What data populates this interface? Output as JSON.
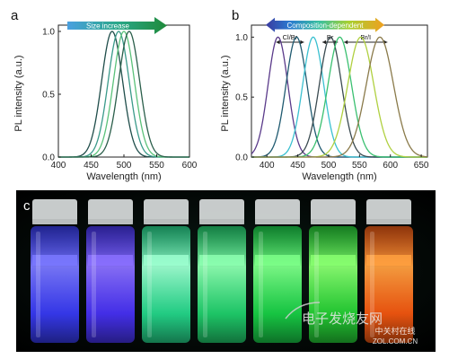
{
  "panels": {
    "a": "a",
    "b": "b",
    "c": "c"
  },
  "chart_data": [
    {
      "type": "line",
      "panel": "a",
      "xlabel": "Wavelength (nm)",
      "ylabel": "PL intensity (a.u.)",
      "xlim": [
        400,
        600
      ],
      "ylim": [
        0,
        1.05
      ],
      "xticks": [
        400,
        450,
        500,
        550,
        600
      ],
      "yticks": [
        0.0,
        0.5,
        1.0
      ],
      "annotation": "Size increase",
      "curves": [
        {
          "peak": 482,
          "width": 16,
          "color": "#1f4d4a"
        },
        {
          "peak": 492,
          "width": 16,
          "color": "#3a9a8a"
        },
        {
          "peak": 500,
          "width": 16,
          "color": "#5bc27a"
        },
        {
          "peak": 508,
          "width": 16,
          "color": "#2a5e4a"
        }
      ]
    },
    {
      "type": "line",
      "panel": "b",
      "xlabel": "Wavelength (nm)",
      "ylabel": "PL intensity (a.u.)",
      "xlim": [
        375,
        660
      ],
      "ylim": [
        0,
        1.1
      ],
      "xticks": [
        400,
        450,
        500,
        550,
        600,
        650
      ],
      "yticks": [
        0.0,
        0.5,
        1.0
      ],
      "annotation": "Composition-dependent",
      "groups": [
        {
          "label": "Cl/Br",
          "from": 415,
          "to": 460
        },
        {
          "label": "Br",
          "from": 490,
          "to": 515
        },
        {
          "label": "Br/I",
          "from": 525,
          "to": 595
        }
      ],
      "curves": [
        {
          "peak": 418,
          "width": 16,
          "color": "#5a3a8a"
        },
        {
          "peak": 448,
          "width": 17,
          "color": "#1f5a70"
        },
        {
          "peak": 475,
          "width": 17,
          "color": "#3ac0d0"
        },
        {
          "peak": 503,
          "width": 18,
          "color": "#3a4a50"
        },
        {
          "peak": 518,
          "width": 19,
          "color": "#3ac070"
        },
        {
          "peak": 552,
          "width": 21,
          "color": "#b0d040"
        },
        {
          "peak": 583,
          "width": 22,
          "color": "#8a7a4a"
        }
      ]
    }
  ],
  "photo": {
    "vials": [
      {
        "glow": "#3a3cff",
        "core": "#7a78ff"
      },
      {
        "glow": "#4a32ff",
        "core": "#8a70ff"
      },
      {
        "glow": "#25e090",
        "core": "#9cffd0"
      },
      {
        "glow": "#20d870",
        "core": "#8cffb0"
      },
      {
        "glow": "#18d848",
        "core": "#7cff88"
      },
      {
        "glow": "#25d835",
        "core": "#88ff70"
      },
      {
        "glow": "#ff5a10",
        "core": "#ffa040"
      }
    ],
    "watermark_cn": "电子发烧友网",
    "watermark_site": "ZOL.COM.CN",
    "watermark_brand": "中关村在线"
  }
}
